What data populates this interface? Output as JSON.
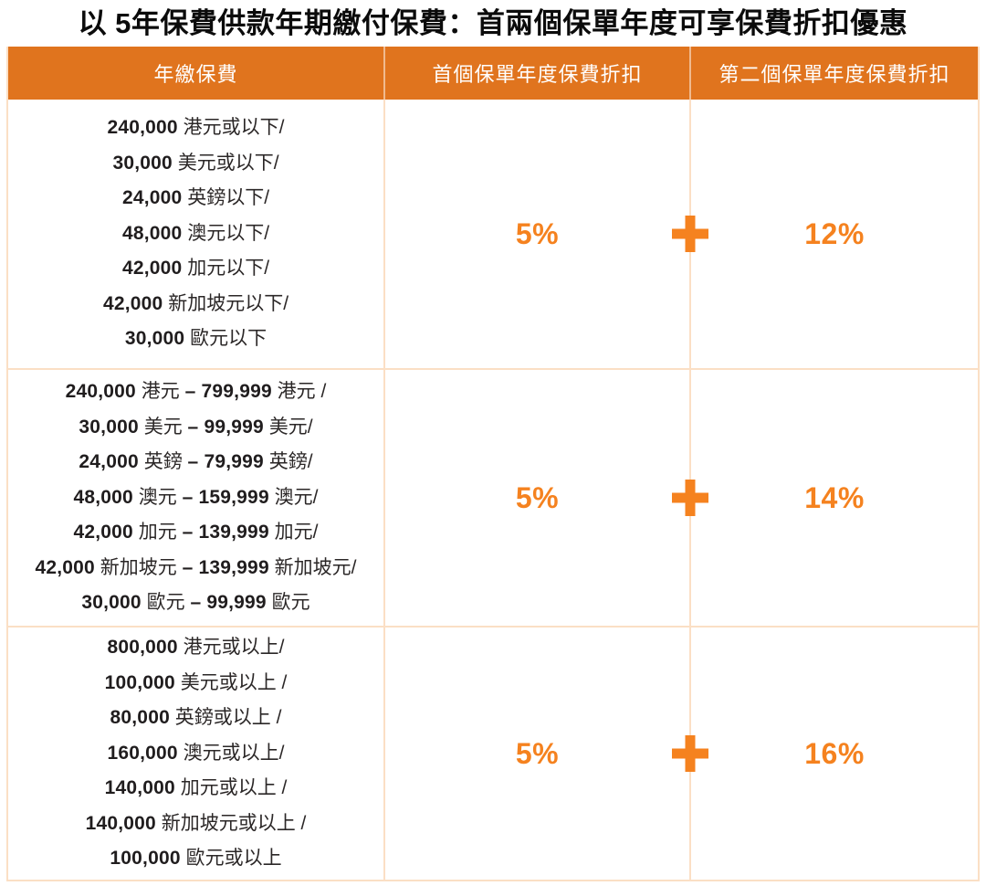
{
  "title": "以 5年保費供款年期繳付保費：首兩個保單年度可享保費折扣優惠",
  "colors": {
    "header_bg": "#E0741E",
    "header_text": "#FFFFFF",
    "accent": "#F5821F",
    "border": "#FBDFC5",
    "body_text": "#232020"
  },
  "table": {
    "columns": [
      "年繳保費",
      "首個保單年度保費折扣",
      "第二個保單年度保費折扣"
    ],
    "plus_symbol": "+",
    "rows": [
      {
        "annual_premium": [
          [
            {
              "b": "240,000"
            },
            {
              "t": " 港元或以下/"
            }
          ],
          [
            {
              "b": "30,000"
            },
            {
              "t": " 美元或以下/"
            }
          ],
          [
            {
              "b": "24,000"
            },
            {
              "t": " 英鎊以下/"
            }
          ],
          [
            {
              "b": "48,000"
            },
            {
              "t": " 澳元以下/"
            }
          ],
          [
            {
              "b": "42,000"
            },
            {
              "t": " 加元以下/"
            }
          ],
          [
            {
              "b": "42,000"
            },
            {
              "t": " 新加坡元以下/"
            }
          ],
          [
            {
              "b": "30,000"
            },
            {
              "t": " 歐元以下"
            }
          ]
        ],
        "first_year_discount": "5%",
        "second_year_discount": "12%"
      },
      {
        "annual_premium": [
          [
            {
              "b": "240,000"
            },
            {
              "t": " 港元 "
            },
            {
              "b": "– 799,999"
            },
            {
              "t": " 港元 /"
            }
          ],
          [
            {
              "b": "30,000"
            },
            {
              "t": " 美元 "
            },
            {
              "b": "– 99,999"
            },
            {
              "t": " 美元/"
            }
          ],
          [
            {
              "b": "24,000"
            },
            {
              "t": " 英鎊 "
            },
            {
              "b": "– 79,999"
            },
            {
              "t": " 英鎊/"
            }
          ],
          [
            {
              "b": "48,000"
            },
            {
              "t": " 澳元 "
            },
            {
              "b": "– 159,999"
            },
            {
              "t": " 澳元/"
            }
          ],
          [
            {
              "b": "42,000"
            },
            {
              "t": " 加元 "
            },
            {
              "b": "– 139,999"
            },
            {
              "t": " 加元/"
            }
          ],
          [
            {
              "b": "42,000"
            },
            {
              "t": " 新加坡元 "
            },
            {
              "b": "– 139,999"
            },
            {
              "t": " 新加坡元/"
            }
          ],
          [
            {
              "b": "30,000"
            },
            {
              "t": " 歐元 "
            },
            {
              "b": "– 99,999"
            },
            {
              "t": " 歐元"
            }
          ]
        ],
        "first_year_discount": "5%",
        "second_year_discount": "14%"
      },
      {
        "annual_premium": [
          [
            {
              "b": "800,000"
            },
            {
              "t": " 港元或以上/"
            }
          ],
          [
            {
              "b": "100,000"
            },
            {
              "t": " 美元或以上 /"
            }
          ],
          [
            {
              "b": "80,000"
            },
            {
              "t": " 英鎊或以上 /"
            }
          ],
          [
            {
              "b": "160,000"
            },
            {
              "t": " 澳元或以上/"
            }
          ],
          [
            {
              "b": "140,000"
            },
            {
              "t": " 加元或以上 /"
            }
          ],
          [
            {
              "b": "140,000"
            },
            {
              "t": " 新加坡元或以上 /"
            }
          ],
          [
            {
              "b": "100,000"
            },
            {
              "t": " 歐元或以上"
            }
          ]
        ],
        "first_year_discount": "5%",
        "second_year_discount": "16%"
      }
    ]
  }
}
